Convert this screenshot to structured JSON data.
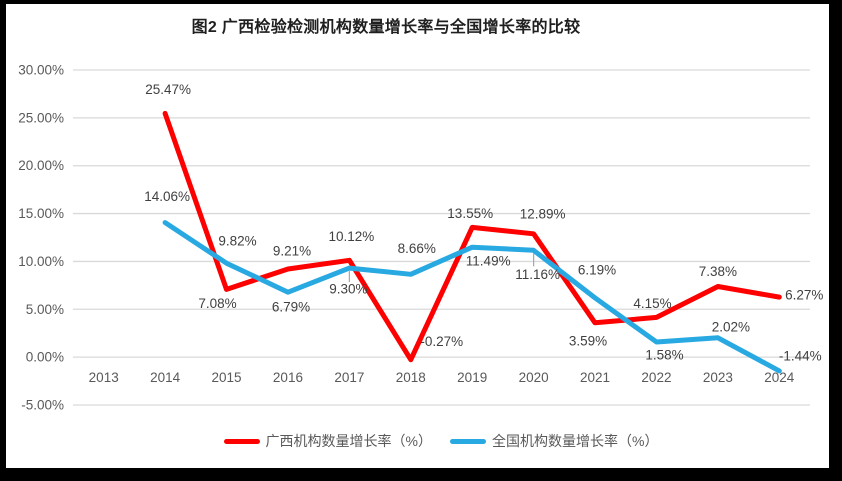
{
  "title": "图2 广西检验检测机构数量增长率与全国增长率的比较",
  "colors": {
    "guangxi": "#fe0000",
    "national": "#29a9e1",
    "gridline": "#d9d9d9",
    "axis_text": "#595959",
    "label_text": "#404040",
    "leader": "#a6a6a6",
    "frame": "#000000",
    "background": "#ffffff",
    "title_text": "#1f1f1f"
  },
  "chart_data": {
    "type": "line",
    "title": "图2 广西检验检测机构数量增长率与全国增长率的比较",
    "categories": [
      "2013",
      "2014",
      "2015",
      "2016",
      "2017",
      "2018",
      "2019",
      "2020",
      "2021",
      "2022",
      "2023",
      "2024"
    ],
    "series": [
      {
        "name": "广西机构数量增长率（%）",
        "color_key": "guangxi",
        "values": [
          null,
          25.47,
          7.08,
          9.21,
          10.12,
          -0.27,
          13.55,
          12.89,
          3.59,
          4.15,
          7.38,
          6.27
        ]
      },
      {
        "name": "全国机构数量增长率（%）",
        "color_key": "national",
        "values": [
          null,
          14.06,
          9.82,
          6.79,
          9.3,
          8.66,
          11.49,
          11.16,
          6.19,
          1.58,
          2.02,
          -1.44
        ]
      }
    ],
    "ylim": [
      -5,
      30
    ],
    "ytick_values": [
      30,
      25,
      20,
      15,
      10,
      5,
      0,
      -5
    ],
    "ytick_labels": [
      "30.00%",
      "25.00%",
      "20.00%",
      "15.00%",
      "10.00%",
      "5.00%",
      "0.00%",
      "-5.00%"
    ],
    "grid": true,
    "legend_position": "bottom",
    "data_labels": true,
    "data_label_format": "0.00%"
  }
}
